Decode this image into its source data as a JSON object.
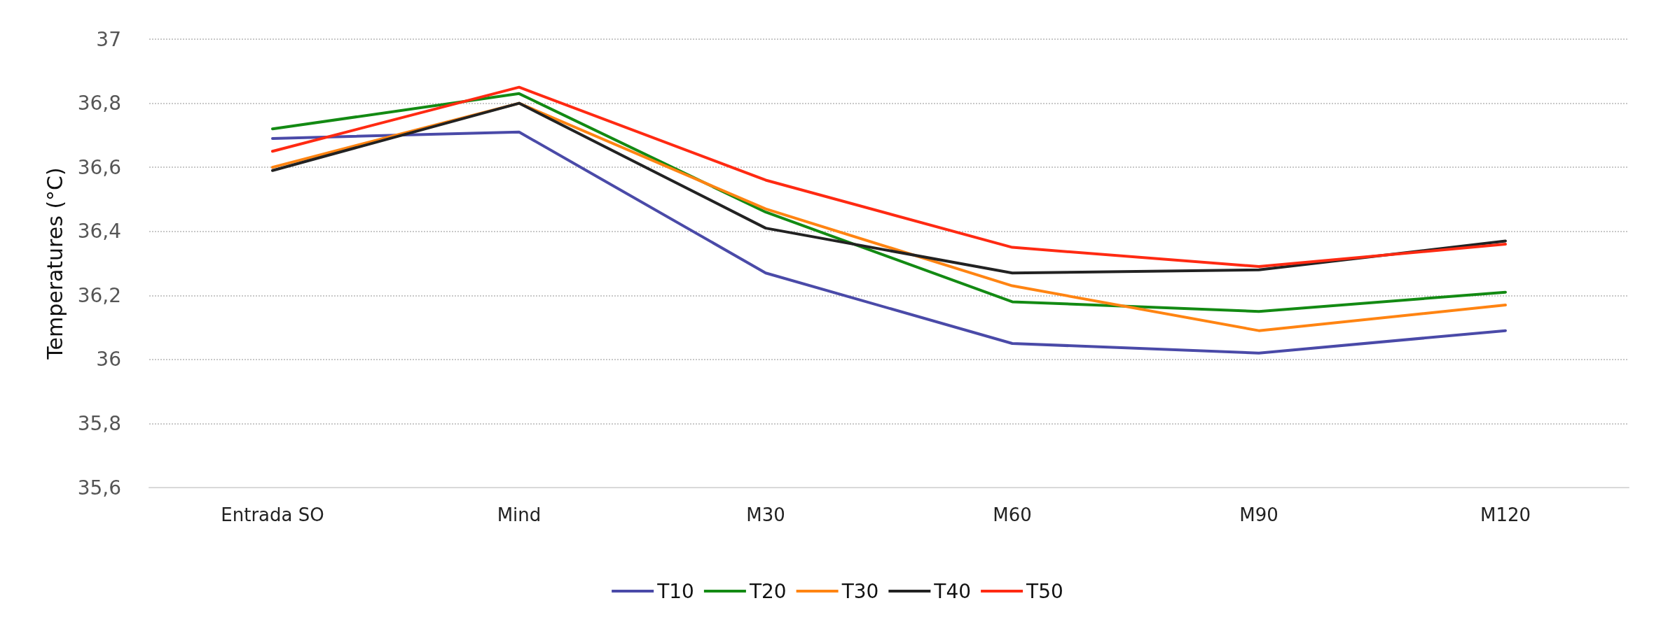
{
  "chart_data": {
    "type": "line",
    "ylabel": "Temperatures (°C)",
    "categories": [
      "Entrada SO",
      "Mind",
      "M30",
      "M60",
      "M90",
      "M120"
    ],
    "ylim": [
      35.6,
      37
    ],
    "yticks": [
      {
        "value": 35.6,
        "label": "35,6"
      },
      {
        "value": 35.8,
        "label": "35,8"
      },
      {
        "value": 36,
        "label": "36"
      },
      {
        "value": 36.2,
        "label": "36,2"
      },
      {
        "value": 36.4,
        "label": "36,4"
      },
      {
        "value": 36.6,
        "label": "36,6"
      },
      {
        "value": 36.8,
        "label": "36,8"
      },
      {
        "value": 37,
        "label": "37"
      }
    ],
    "grid": "y",
    "legend": "bottom",
    "marker": "none",
    "line_style": "solid",
    "series": [
      {
        "name": "T10",
        "color": "#4a4aa8",
        "values": [
          36.69,
          36.71,
          36.27,
          36.05,
          36.02,
          36.09
        ]
      },
      {
        "name": "T20",
        "color": "#138a13",
        "values": [
          36.72,
          36.83,
          36.46,
          36.18,
          36.15,
          36.21
        ]
      },
      {
        "name": "T30",
        "color": "#ff8412",
        "values": [
          36.6,
          36.8,
          36.47,
          36.23,
          36.09,
          36.17
        ]
      },
      {
        "name": "T40",
        "color": "#222222",
        "values": [
          36.59,
          36.8,
          36.41,
          36.27,
          36.28,
          36.37
        ]
      },
      {
        "name": "T50",
        "color": "#ff2a12",
        "values": [
          36.65,
          36.85,
          36.56,
          36.35,
          36.29,
          36.36
        ]
      }
    ]
  }
}
